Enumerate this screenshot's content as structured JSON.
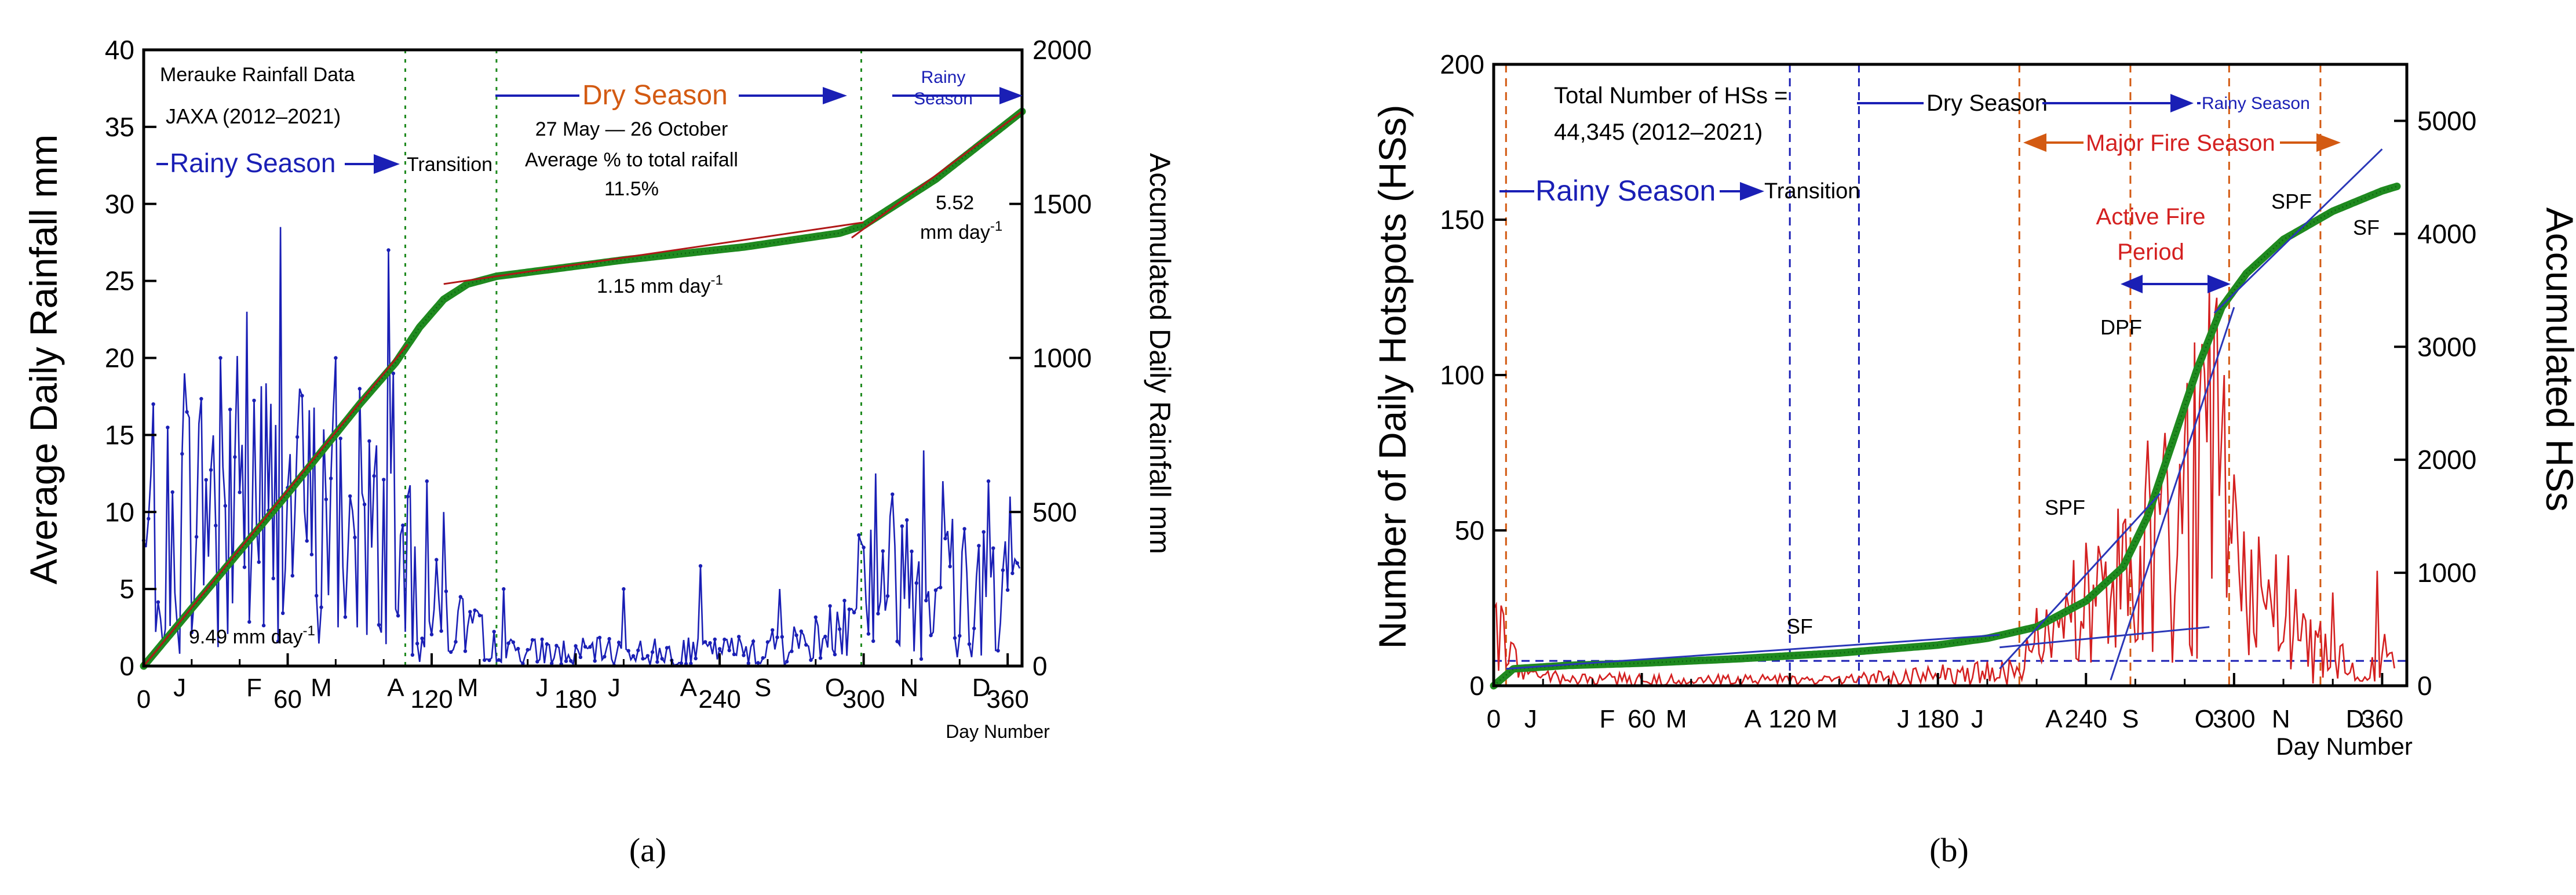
{
  "panels": [
    {
      "id": "a",
      "caption": "(a)",
      "chart_data": {
        "type": "line",
        "xlabel": "Day Number",
        "ylabel_left": "Average Daily Rainfall  mm",
        "ylabel_right": "Accumulated Daily Rainfall   mm",
        "xlim": [
          0,
          366
        ],
        "ylim_left": [
          0,
          40
        ],
        "ylim_right": [
          0,
          2000
        ],
        "x_ticks": [
          0,
          60,
          120,
          180,
          240,
          300,
          360
        ],
        "x_tick_labels": [
          "0",
          "60",
          "120",
          "180",
          "240",
          "300",
          "360"
        ],
        "y_ticks_left": [
          0,
          5,
          10,
          15,
          20,
          25,
          30,
          35,
          40
        ],
        "y_ticks_right": [
          0,
          500,
          1000,
          1500,
          2000
        ],
        "months": [
          {
            "label": "J",
            "day": 15
          },
          {
            "label": "F",
            "day": 46
          },
          {
            "label": "M",
            "day": 74
          },
          {
            "label": "A",
            "day": 105
          },
          {
            "label": "M",
            "day": 135
          },
          {
            "label": "J",
            "day": 166
          },
          {
            "label": "J",
            "day": 196
          },
          {
            "label": "A",
            "day": 227
          },
          {
            "label": "S",
            "day": 258
          },
          {
            "label": "O",
            "day": 288
          },
          {
            "label": "N",
            "day": 319
          },
          {
            "label": "D",
            "day": 349
          }
        ],
        "vlines": [
          109,
          147,
          299
        ],
        "series": [
          {
            "name": "Average daily rainfall",
            "axis": "left",
            "color": "#1a1fb5",
            "anchors": [
              [
                0,
                7
              ],
              [
                15,
                10
              ],
              [
                30,
                11
              ],
              [
                45,
                12
              ],
              [
                60,
                10
              ],
              [
                75,
                10
              ],
              [
                90,
                9
              ],
              [
                105,
                8
              ],
              [
                120,
                4
              ],
              [
                135,
                2.5
              ],
              [
                150,
                1
              ],
              [
                180,
                1
              ],
              [
                210,
                1
              ],
              [
                240,
                1
              ],
              [
                270,
                1.5
              ],
              [
                285,
                2
              ],
              [
                300,
                6
              ],
              [
                315,
                6.5
              ],
              [
                330,
                6
              ],
              [
                345,
                6
              ],
              [
                366,
                6
              ]
            ],
            "peaks": [
              [
                4,
                17
              ],
              [
                17,
                19
              ],
              [
                32,
                20
              ],
              [
                43,
                23
              ],
              [
                57,
                28.5
              ],
              [
                65,
                18
              ],
              [
                80,
                20
              ],
              [
                90,
                18
              ],
              [
                102,
                27
              ],
              [
                104,
                19
              ],
              [
                110,
                11
              ],
              [
                118,
                12
              ],
              [
                125,
                10
              ],
              [
                150,
                5
              ],
              [
                200,
                5
              ],
              [
                232,
                6.5
              ],
              [
                265,
                5
              ],
              [
                298,
                8.5
              ],
              [
                305,
                12.5
              ],
              [
                325,
                14
              ],
              [
                333,
                12
              ],
              [
                352,
                12
              ],
              [
                361,
                11
              ]
            ]
          },
          {
            "name": "Accumulated daily rainfall",
            "axis": "right",
            "color": "#1f8a1f",
            "points": [
              [
                0,
                0
              ],
              [
                30,
                280
              ],
              [
                60,
                560
              ],
              [
                90,
                850
              ],
              [
                105,
                985
              ],
              [
                115,
                1100
              ],
              [
                125,
                1190
              ],
              [
                135,
                1240
              ],
              [
                147,
                1265
              ],
              [
                200,
                1318
              ],
              [
                250,
                1360
              ],
              [
                290,
                1405
              ],
              [
                300,
                1430
              ],
              [
                330,
                1580
              ],
              [
                366,
                1800
              ]
            ]
          }
        ],
        "fit_lines": [
          {
            "label": "9.49 mm day-1",
            "x": [
              0,
              110
            ],
            "y_right": [
              0,
              1044
            ]
          },
          {
            "label": "1.15 mm day-1",
            "x": [
              125,
              300
            ],
            "y_right": [
              1240,
              1440
            ]
          },
          {
            "label": "5.52 mm day-1",
            "x": [
              295,
              366
            ],
            "y_right": [
              1390,
              1800
            ]
          }
        ]
      },
      "annotations": {
        "data_title_1": "Merauke Rainfall Data",
        "data_title_2": "JAXA (2012–2021)",
        "rainy_season": "Rainy Season",
        "transition": "Transition",
        "dry_season": "Dry Season",
        "dry_dates": "27 May — 26 October",
        "avg_pct_1": "Average % to total raifall",
        "avg_pct_2": "11.5%",
        "rainy_right_1": "Rainy",
        "rainy_right_2": "Season",
        "rate_dry": "1.15 mm day",
        "rate_rainy": "9.49 mm day",
        "rate_late_1": "5.52",
        "rate_late_2": "mm day",
        "superscript": "-1"
      }
    },
    {
      "id": "b",
      "caption": "(b)",
      "chart_data": {
        "type": "line",
        "xlabel": "Day Number",
        "ylabel_left": "Number of Daily Hotspots (HSs)",
        "ylabel_right": "Accumulated HSs",
        "xlim": [
          0,
          370
        ],
        "ylim_left": [
          0,
          200
        ],
        "ylim_right": [
          0,
          5500
        ],
        "x_ticks": [
          0,
          60,
          120,
          180,
          240,
          300,
          360
        ],
        "x_tick_labels": [
          "0",
          "60",
          "120",
          "180",
          "240",
          "300",
          "360"
        ],
        "y_ticks_left": [
          0,
          50,
          100,
          150,
          200
        ],
        "y_ticks_right": [
          0,
          1000,
          2000,
          3000,
          4000,
          5000
        ],
        "months": [
          {
            "label": "J",
            "day": 15
          },
          {
            "label": "F",
            "day": 46
          },
          {
            "label": "M",
            "day": 74
          },
          {
            "label": "A",
            "day": 105
          },
          {
            "label": "M",
            "day": 135
          },
          {
            "label": "J",
            "day": 166
          },
          {
            "label": "J",
            "day": 196
          },
          {
            "label": "A",
            "day": 227
          },
          {
            "label": "S",
            "day": 258
          },
          {
            "label": "O",
            "day": 288
          },
          {
            "label": "N",
            "day": 319
          },
          {
            "label": "D",
            "day": 349
          }
        ],
        "vlines_orange": [
          5,
          213,
          258,
          298,
          335
        ],
        "vlines_blue": [
          120,
          148
        ],
        "hline_left": 8,
        "series": [
          {
            "name": "Number of daily hotspots",
            "axis": "left",
            "color": "#d42020",
            "anchors": [
              [
                0,
                17
              ],
              [
                8,
                10
              ],
              [
                15,
                3
              ],
              [
                60,
                2
              ],
              [
                120,
                2
              ],
              [
                170,
                3
              ],
              [
                200,
                5
              ],
              [
                213,
                8
              ],
              [
                230,
                18
              ],
              [
                245,
                30
              ],
              [
                258,
                40
              ],
              [
                270,
                48
              ],
              [
                285,
                62
              ],
              [
                292,
                80
              ],
              [
                298,
                40
              ],
              [
                305,
                30
              ],
              [
                320,
                22
              ],
              [
                335,
                12
              ],
              [
                350,
                6
              ],
              [
                360,
                12
              ],
              [
                366,
                3
              ]
            ],
            "peaks": [
              [
                4,
                23
              ],
              [
                220,
                25
              ],
              [
                245,
                45
              ],
              [
                255,
                52
              ],
              [
                262,
                45
              ],
              [
                270,
                55
              ],
              [
                280,
                80
              ],
              [
                287,
                110
              ],
              [
                292,
                118
              ],
              [
                296,
                100
              ],
              [
                300,
                68
              ],
              [
                310,
                48
              ],
              [
                322,
                42
              ],
              [
                340,
                30
              ],
              [
                358,
                37
              ]
            ]
          },
          {
            "name": "Accumulated hotspots",
            "axis": "right",
            "color": "#1f8a1f",
            "points": [
              [
                0,
                0
              ],
              [
                8,
                150
              ],
              [
                30,
                180
              ],
              [
                60,
                200
              ],
              [
                100,
                240
              ],
              [
                140,
                290
              ],
              [
                180,
                360
              ],
              [
                200,
                420
              ],
              [
                220,
                520
              ],
              [
                240,
                750
              ],
              [
                255,
                1050
              ],
              [
                265,
                1500
              ],
              [
                275,
                2150
              ],
              [
                285,
                2800
              ],
              [
                295,
                3350
              ],
              [
                305,
                3650
              ],
              [
                320,
                3950
              ],
              [
                340,
                4200
              ],
              [
                360,
                4380
              ],
              [
                366,
                4420
              ]
            ]
          }
        ],
        "fit_lines": [
          {
            "label": "SF",
            "x": [
              5,
              205
            ],
            "y_right": [
              150,
              450
            ]
          },
          {
            "label": "SPF",
            "x": [
              205,
              270
            ],
            "y_right": [
              150,
              1700
            ]
          },
          {
            "label": "SPF",
            "x": [
              205,
              290
            ],
            "y_right": [
              340,
              520
            ]
          },
          {
            "label": "DPF",
            "x": [
              250,
              300
            ],
            "y_right": [
              50,
              3350
            ]
          },
          {
            "label": "SPF",
            "x": [
              292,
              360
            ],
            "y_right": [
              3300,
              4750
            ]
          }
        ]
      },
      "annotations": {
        "total_1": "Total Number of HSs =",
        "total_2": "44,345 (2012–2021)",
        "rainy_season": "Rainy Season",
        "transition": "Transition",
        "dry_season": "Dry Season",
        "rainy_season_right": "Rainy Season",
        "major_fire": "Major Fire Season",
        "active_fire_1": "Active Fire",
        "active_fire_2": "Period",
        "sf_low": "SF",
        "spf_low": "SPF",
        "dpf": "DPF",
        "spf_high": "SPF",
        "sf_high": "SF"
      }
    }
  ],
  "colors": {
    "rain": "#1a1fb5",
    "cum": "#1f8a1f",
    "fit_red": "#b01818",
    "hs": "#d42020",
    "season_orange": "#d35a12",
    "season_blue": "#1a1fb5",
    "fit_blue": "#2a37b8"
  }
}
